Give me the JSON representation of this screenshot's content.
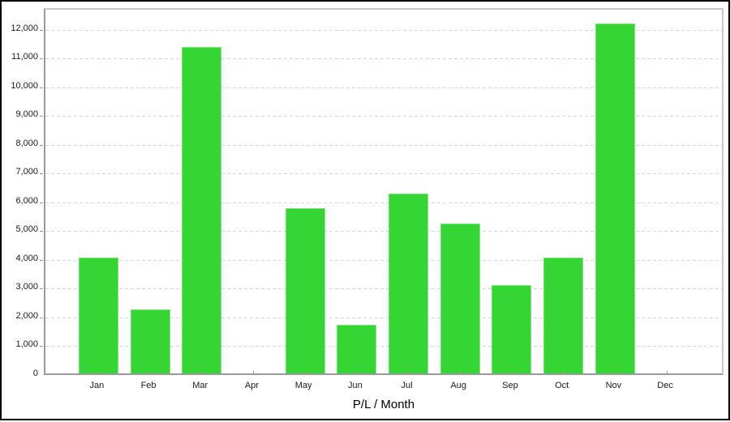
{
  "window": {
    "background_color": "#ffffff",
    "frame_border_color": "#000000"
  },
  "chart_data": {
    "type": "bar",
    "title": "P/L / Month",
    "title_position": "bottom",
    "xlabel": "",
    "ylabel": "",
    "categories": [
      "Jan",
      "Feb",
      "Mar",
      "Apr",
      "May",
      "Jun",
      "Jul",
      "Aug",
      "Sep",
      "Oct",
      "Nov",
      "Dec"
    ],
    "values": [
      4020,
      2230,
      11360,
      0,
      5760,
      1690,
      6260,
      5200,
      3080,
      4030,
      12160,
      0
    ],
    "ylim": [
      0,
      12760
    ],
    "ytick_step": 1000,
    "ytick_labels": [
      "0",
      "1,000",
      "2,000",
      "3,000",
      "4,000",
      "5,000",
      "6,000",
      "7,000",
      "8,000",
      "9,000",
      "10,000",
      "11,000",
      "12,000"
    ],
    "grid": "horizontal-dashed",
    "legend": "none",
    "colors": {
      "bar_fill": "#33D633",
      "bar_border": "#79E679",
      "grid": "#d6d6d6",
      "axis": "#9a9a9a",
      "tick": "#9a9a9a",
      "text": "#1a1a1a"
    }
  }
}
